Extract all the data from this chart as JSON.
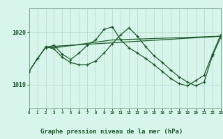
{
  "bg_color": "#d8f5ec",
  "grid_color": "#b0d8c8",
  "line_color": "#1a5c28",
  "title": "Graphe pression niveau de la mer (hPa)",
  "xlim": [
    0,
    23
  ],
  "ylim": [
    1018.55,
    1020.45
  ],
  "yticks": [
    1019.0,
    1020.0
  ],
  "ytick_labels": [
    "1019",
    "1020"
  ],
  "xticks": [
    0,
    1,
    2,
    3,
    4,
    5,
    6,
    7,
    8,
    9,
    10,
    11,
    12,
    13,
    14,
    15,
    16,
    17,
    18,
    19,
    20,
    21,
    22,
    23
  ],
  "line1_x": [
    0,
    1,
    2,
    3,
    4,
    5,
    6,
    7,
    8,
    9,
    10,
    11,
    12,
    13,
    14,
    15,
    16,
    17,
    18,
    19,
    20,
    21,
    22,
    23
  ],
  "line1_y": [
    1019.25,
    1019.5,
    1019.7,
    1019.75,
    1019.58,
    1019.48,
    1019.6,
    1019.75,
    1019.85,
    1020.05,
    1020.1,
    1019.85,
    1019.7,
    1019.6,
    1019.5,
    1019.38,
    1019.25,
    1019.12,
    1019.02,
    1018.98,
    1019.08,
    1019.18,
    1019.58,
    1019.95
  ],
  "line2_x": [
    2,
    3,
    4,
    5,
    6,
    7,
    8,
    9,
    10,
    11,
    12,
    13,
    14,
    15,
    16,
    17,
    18,
    19,
    20,
    21,
    22,
    23
  ],
  "line2_y": [
    1019.72,
    1019.68,
    1019.52,
    1019.42,
    1019.38,
    1019.38,
    1019.45,
    1019.6,
    1019.78,
    1019.95,
    1020.08,
    1019.92,
    1019.72,
    1019.55,
    1019.42,
    1019.28,
    1019.15,
    1019.05,
    1018.98,
    1019.05,
    1019.55,
    1019.9
  ],
  "line3_x": [
    0,
    2,
    3,
    10,
    23
  ],
  "line3_y": [
    1019.25,
    1019.72,
    1019.7,
    1019.85,
    1019.92
  ],
  "line4_x": [
    2,
    23
  ],
  "line4_y": [
    1019.72,
    1019.92
  ]
}
